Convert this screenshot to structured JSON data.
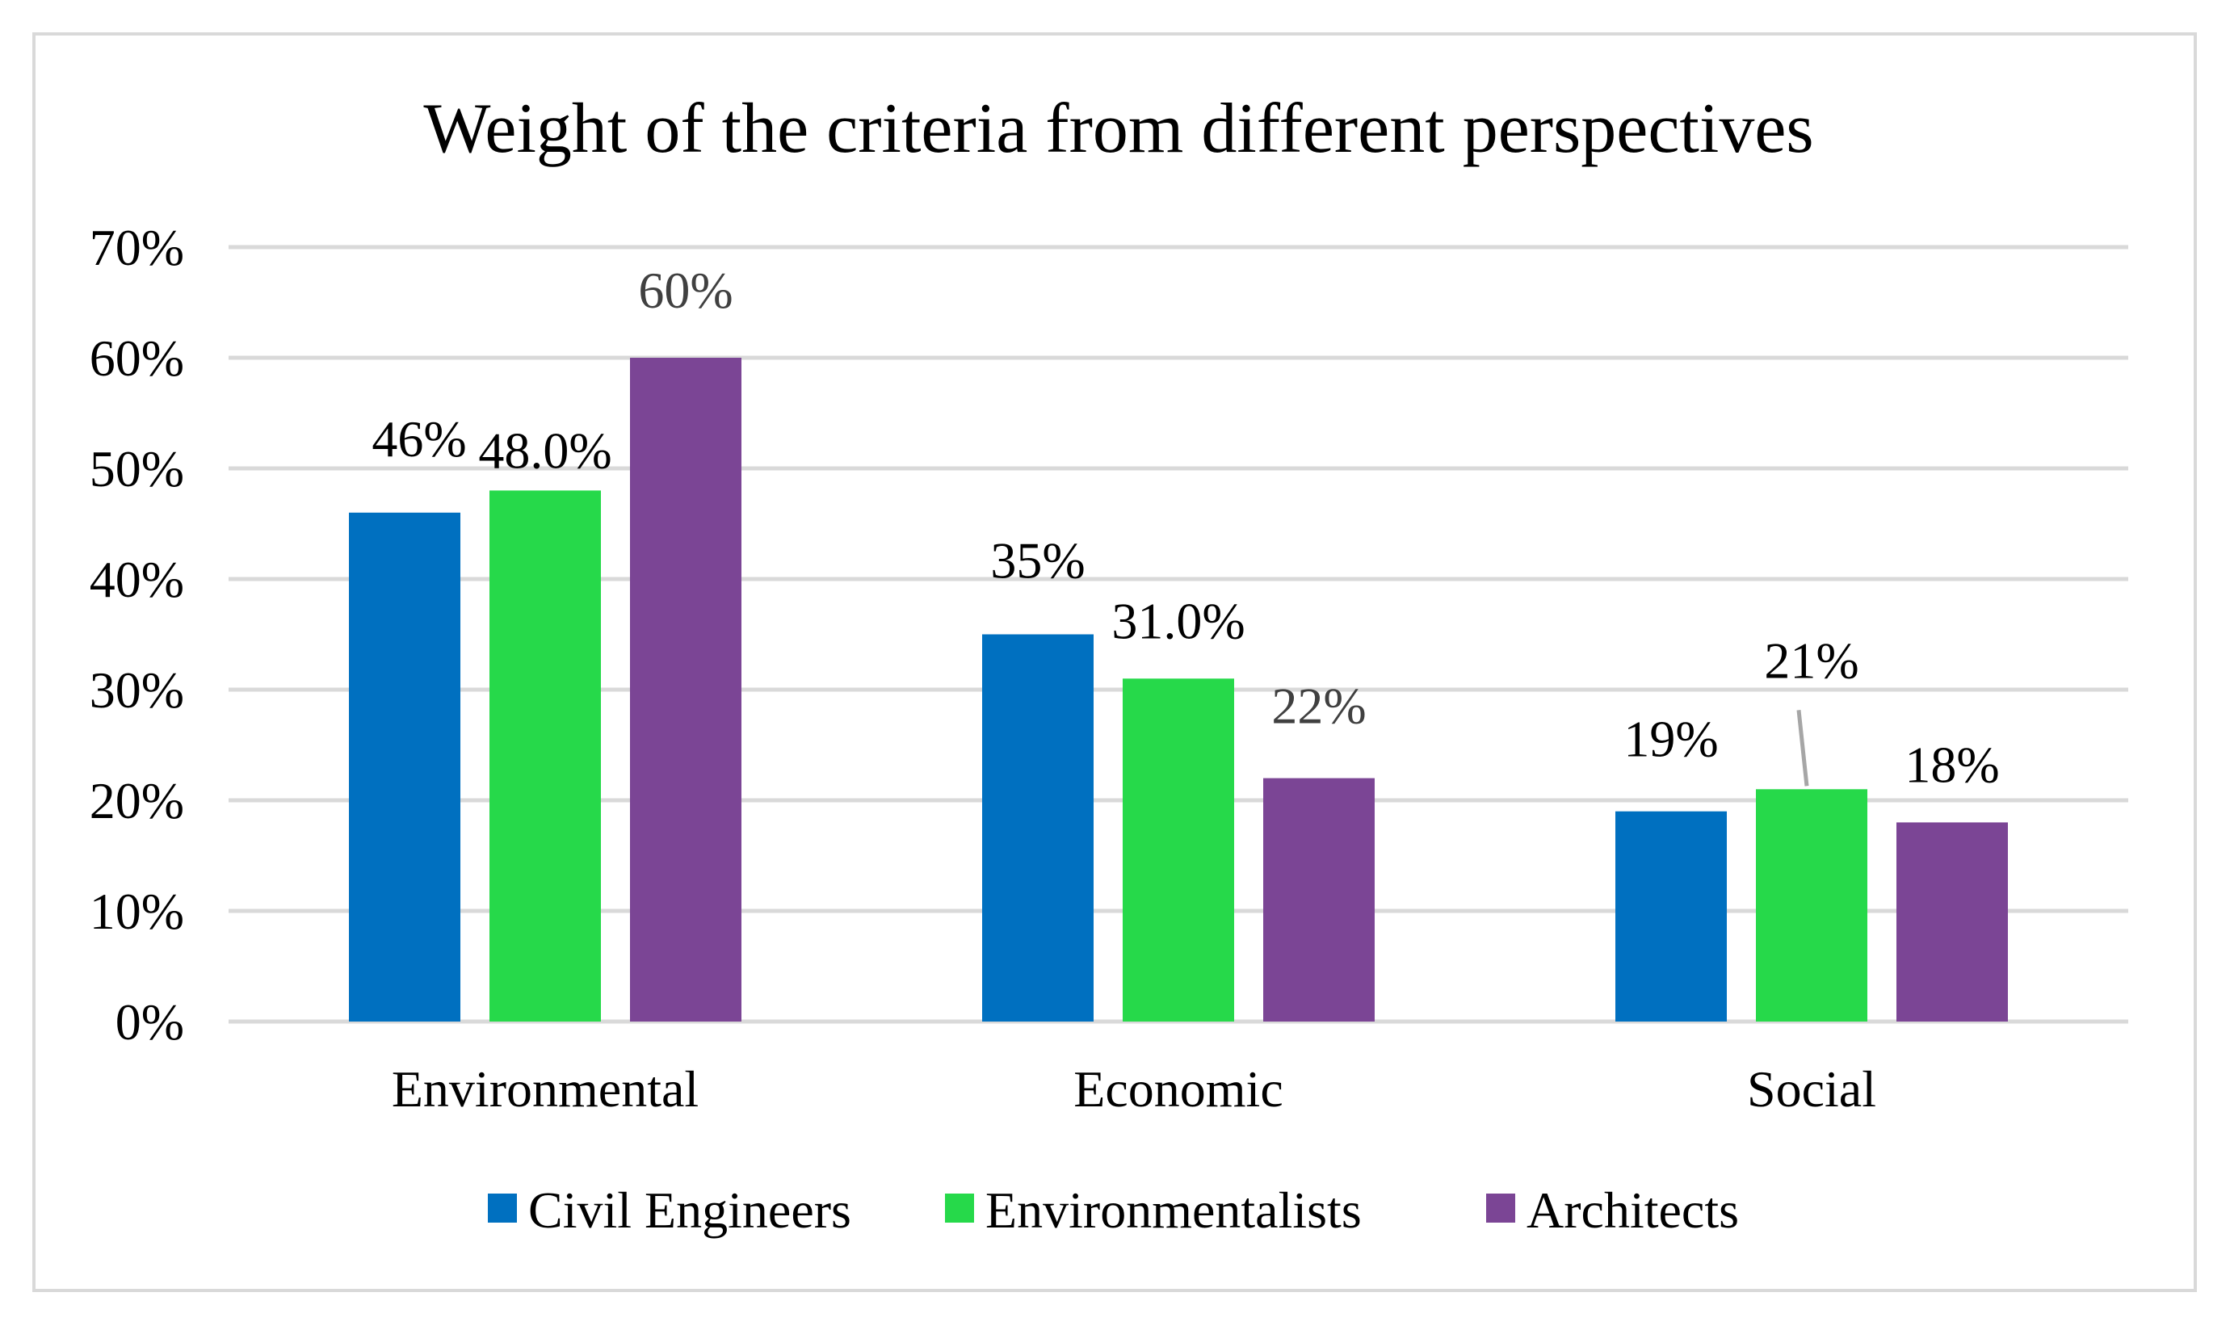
{
  "chart_data": {
    "type": "bar",
    "title": "Weight of the criteria from different perspectives",
    "categories": [
      "Environmental",
      "Economic",
      "Social"
    ],
    "series": [
      {
        "name": "Civil Engineers",
        "color": "#0070c0",
        "values": [
          46,
          35,
          19
        ],
        "labels": [
          "46%",
          "35%",
          "19%"
        ]
      },
      {
        "name": "Environmentalists",
        "color": "#26d94a",
        "values": [
          48,
          31,
          21
        ],
        "labels": [
          "48.0%",
          "31.0%",
          "21%"
        ]
      },
      {
        "name": "Architects",
        "color": "#7b4595",
        "values": [
          60,
          22,
          18
        ],
        "labels": [
          "60%",
          "22%",
          "18%"
        ]
      }
    ],
    "ylim": [
      0,
      70
    ],
    "yticks": [
      0,
      10,
      20,
      30,
      40,
      50,
      60,
      70
    ],
    "ytick_labels": [
      "0%",
      "10%",
      "20%",
      "30%",
      "40%",
      "50%",
      "60%",
      "70%"
    ],
    "xlabel": "",
    "ylabel": "",
    "grid": true,
    "legend_position": "bottom",
    "gridline_color": "#d9d9d9"
  }
}
